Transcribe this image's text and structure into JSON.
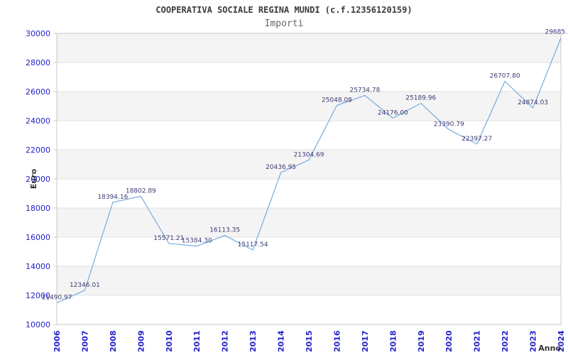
{
  "chart_data": {
    "type": "line",
    "title": "COOPERATIVA SOCIALE REGINA MUNDI (c.f.12356120159)",
    "subtitle": "Importi",
    "xlabel": "Anno",
    "ylabel": "Euro",
    "categories": [
      "2006",
      "2007",
      "2008",
      "2009",
      "2010",
      "2011",
      "2012",
      "2013",
      "2014",
      "2015",
      "2016",
      "2017",
      "2018",
      "2019",
      "2020",
      "2021",
      "2022",
      "2023",
      "2024"
    ],
    "values": [
      11490.97,
      12346.01,
      18394.16,
      18802.89,
      15571.21,
      15384.3,
      16113.35,
      15117.54,
      20436.95,
      21304.69,
      25048.08,
      25734.78,
      24176.0,
      25189.96,
      23390.79,
      22397.27,
      26707.8,
      24874.03,
      29685.0
    ],
    "point_labels": [
      "11490.97",
      "12346.01",
      "18394.16",
      "18802.89",
      "15571.21",
      "15384.30",
      "16113.35",
      "15117.54",
      "20436.95",
      "21304.69",
      "25048.08",
      "25734.78",
      "24176.00",
      "25189.96",
      "23390.79",
      "22397.27",
      "26707.80",
      "24874.03",
      "29685."
    ],
    "ylim": [
      10000,
      30000
    ],
    "yticks": [
      10000,
      12000,
      14000,
      16000,
      18000,
      20000,
      22000,
      24000,
      26000,
      28000,
      30000
    ],
    "ytick_labels": [
      "10000",
      "12000",
      "14000",
      "16000",
      "18000",
      "20000",
      "22000",
      "24000",
      "26000",
      "28000",
      "30000"
    ],
    "grid": "horizontal gridlines every 2000, alternating shaded bands",
    "legend": "none",
    "markers": "none"
  },
  "colors": {
    "line": "#79abdf",
    "tick_label": "#2222cc",
    "data_label": "#3c3c74",
    "band_fill": "#f4f4f4",
    "gridline": "#e2e2e2",
    "frame": "#c8c8c8",
    "title": "#3b3b3b",
    "subtitle": "#666666",
    "axis_title": "#333333"
  }
}
